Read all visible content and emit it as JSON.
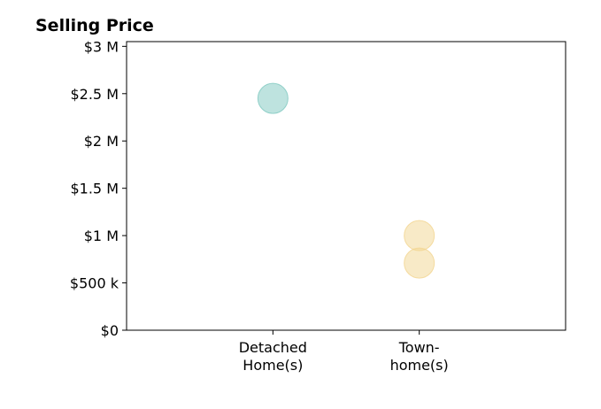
{
  "chart_data": {
    "type": "scatter",
    "title": "Selling Price",
    "xlabel": "",
    "ylabel": "",
    "categories": [
      [
        "Detached",
        "Home(s)"
      ],
      [
        "Town-",
        "home(s)"
      ]
    ],
    "y_ticks": [
      {
        "value": 0,
        "label": "$0"
      },
      {
        "value": 500000,
        "label": "$500 k"
      },
      {
        "value": 1000000,
        "label": "$1 M"
      },
      {
        "value": 1500000,
        "label": "$1.5 M"
      },
      {
        "value": 2000000,
        "label": "$2 M"
      },
      {
        "value": 2500000,
        "label": "$2.5 M"
      },
      {
        "value": 3000000,
        "label": "$3 M"
      }
    ],
    "ylim": [
      0,
      3050000
    ],
    "grid": false,
    "series": [
      {
        "category_index": 0,
        "values": [
          2450000
        ],
        "color": "#7ec8bf"
      },
      {
        "category_index": 1,
        "values": [
          1000000,
          710000
        ],
        "color": "#f2d58f"
      }
    ]
  }
}
